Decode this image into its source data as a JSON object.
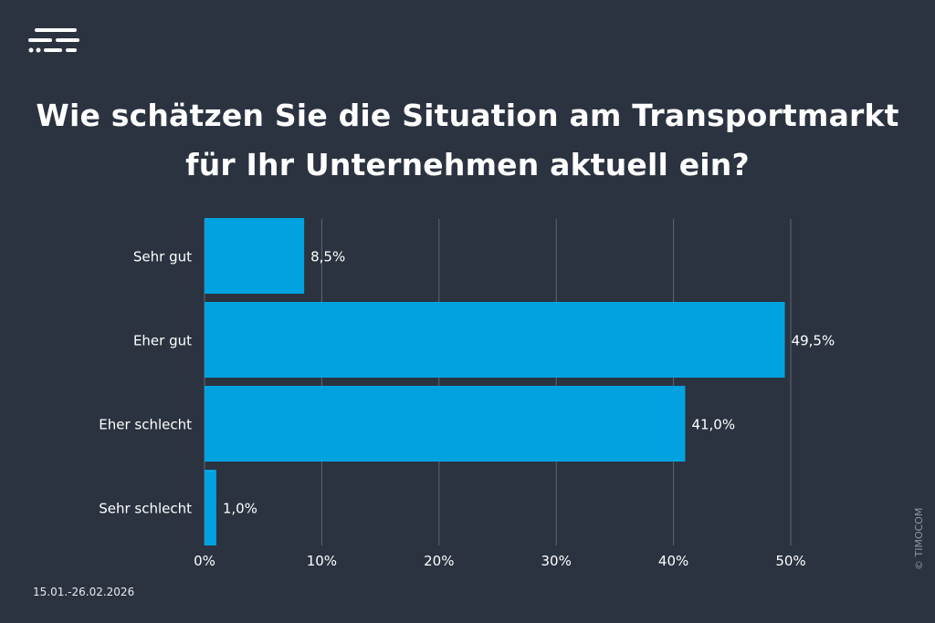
{
  "title_line1": "Wie schätzen Sie die Situation am Transportmarkt",
  "title_line2": "für Ihr Unternehmen aktuell ein?",
  "date_range": "15.01.-26.02.2026",
  "copyright": "© TIMOCOM",
  "colors": {
    "background": "#2b3340",
    "bar": "#00a3e0",
    "grid": "#5e6774",
    "text": "#ffffff"
  },
  "chart_data": {
    "type": "bar",
    "orientation": "horizontal",
    "categories": [
      "Sehr gut",
      "Eher gut",
      "Eher schlecht",
      "Sehr schlecht"
    ],
    "values": [
      8.5,
      49.5,
      41.0,
      1.0
    ],
    "value_labels": [
      "8,5%",
      "49,5%",
      "41,0%",
      "1,0%"
    ],
    "xticks": [
      0,
      10,
      20,
      30,
      40,
      50
    ],
    "xtick_labels": [
      "0%",
      "10%",
      "20%",
      "30%",
      "40%",
      "50%"
    ],
    "xlim": [
      0,
      50
    ],
    "grid": true
  }
}
